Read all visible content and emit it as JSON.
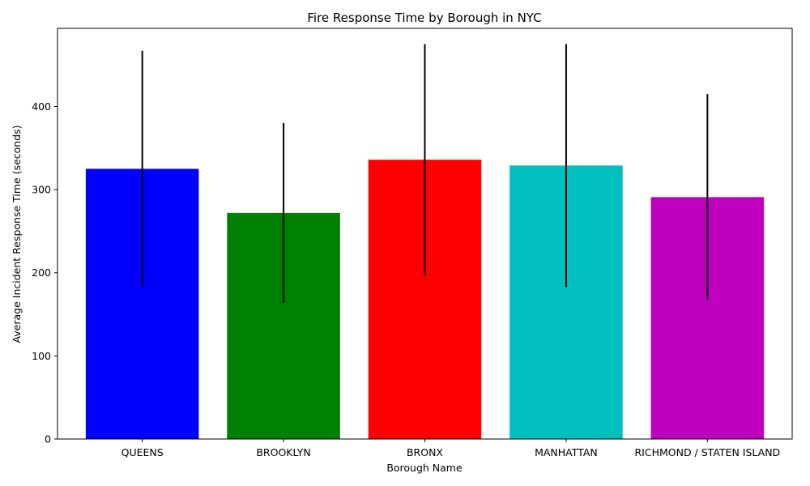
{
  "chart_data": {
    "type": "bar",
    "title": "Fire Response Time by Borough in NYC",
    "xlabel": "Borough Name",
    "ylabel": "Average Incident Response Time (seconds)",
    "categories": [
      "QUEENS",
      "BROOKLYN",
      "BRONX",
      "MANHATTAN",
      "RICHMOND / STATEN ISLAND"
    ],
    "values": [
      325,
      272,
      336,
      329,
      291
    ],
    "error": [
      142,
      108,
      139,
      146,
      124
    ],
    "colors": [
      "#0000ff",
      "#008000",
      "#ff0000",
      "#00bfbf",
      "#bf00bf"
    ],
    "error_color": "#000000",
    "yticks": [
      0,
      100,
      200,
      300,
      400
    ],
    "ylim": [
      0,
      494
    ],
    "grid": false,
    "legend": "none"
  }
}
